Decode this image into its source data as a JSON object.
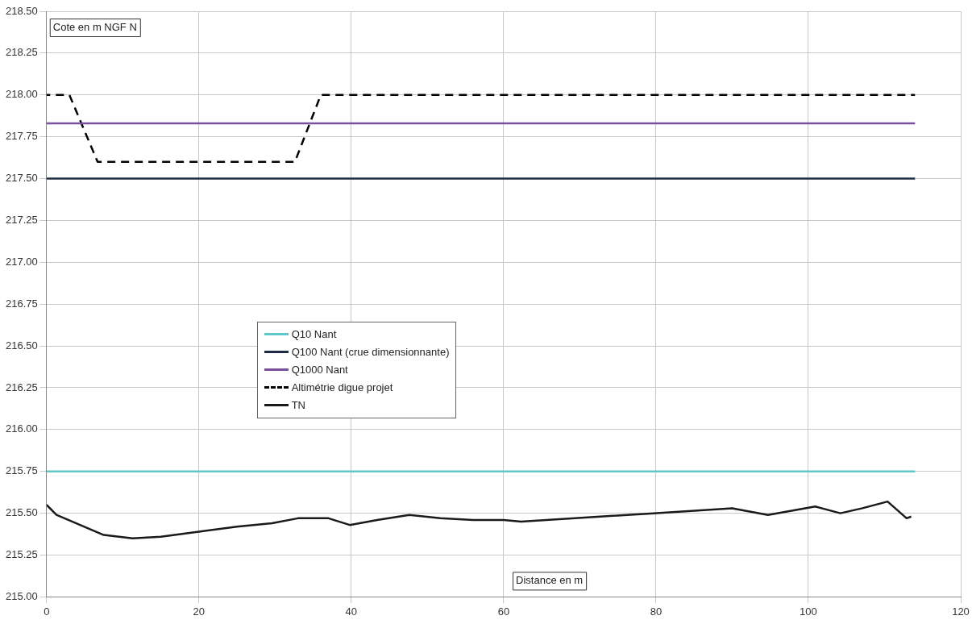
{
  "chart_data": {
    "type": "line",
    "xlabel": "Distance en m",
    "ylabel": "Cote en m NGF N",
    "xlim": [
      0,
      120
    ],
    "xticks": [
      0,
      20,
      40,
      60,
      80,
      100,
      120
    ],
    "ylim": [
      215,
      218.5
    ],
    "yticks": [
      {
        "value": 215,
        "label": "215.00"
      },
      {
        "value": 215.25,
        "label": "215.25"
      },
      {
        "value": 215.5,
        "label": "215.50"
      },
      {
        "value": 215.75,
        "label": "215.75"
      },
      {
        "value": 216,
        "label": "216.00"
      },
      {
        "value": 216.25,
        "label": "216.25"
      },
      {
        "value": 216.5,
        "label": "216.50"
      },
      {
        "value": 216.75,
        "label": "216.75"
      },
      {
        "value": 217,
        "label": "217.00"
      },
      {
        "value": 217.25,
        "label": "217.25"
      },
      {
        "value": 217.5,
        "label": "217.50"
      },
      {
        "value": 217.75,
        "label": "217.75"
      },
      {
        "value": 218,
        "label": "218.00"
      },
      {
        "value": 218.25,
        "label": "218.25"
      },
      {
        "value": 218.5,
        "label": "218.50"
      }
    ],
    "grid": true,
    "legend": "center",
    "marker": "none",
    "series": [
      {
        "name": "Q10 Nant",
        "color": "#5fc8c8",
        "line_style": "solid",
        "x": [
          0,
          114
        ],
        "values": [
          215.75,
          215.75
        ]
      },
      {
        "name": "Q100 Nant (crue dimensionnante)",
        "color": "#1f2a44",
        "line_style": "solid",
        "x": [
          0,
          114
        ],
        "values": [
          217.5,
          217.5
        ]
      },
      {
        "name": "Q1000 Nant",
        "color": "#7b4fa0",
        "line_style": "solid",
        "x": [
          0,
          114
        ],
        "values": [
          217.83,
          217.83
        ]
      },
      {
        "name": "Altimétrie digue projet",
        "color": "#000000",
        "line_style": "dashed",
        "x": [
          0,
          3,
          6.7,
          32.6,
          36,
          114
        ],
        "values": [
          218,
          218,
          217.6,
          217.6,
          218,
          218
        ]
      },
      {
        "name": "TN",
        "color": "#1a1a1a",
        "line_style": "solid",
        "x": [
          0,
          1.3,
          7.5,
          11.3,
          15,
          20,
          25,
          29.6,
          33,
          37,
          39.8,
          43.4,
          47.6,
          51.7,
          56,
          60,
          62.3,
          72.7,
          79.7,
          90,
          94.7,
          100.9,
          104.2,
          107.1,
          110.4,
          112.9,
          113.5
        ],
        "values": [
          215.55,
          215.49,
          215.37,
          215.35,
          215.36,
          215.39,
          215.42,
          215.44,
          215.47,
          215.47,
          215.43,
          215.46,
          215.49,
          215.47,
          215.46,
          215.46,
          215.45,
          215.48,
          215.5,
          215.53,
          215.49,
          215.54,
          215.5,
          215.53,
          215.57,
          215.47,
          215.48
        ]
      }
    ]
  }
}
